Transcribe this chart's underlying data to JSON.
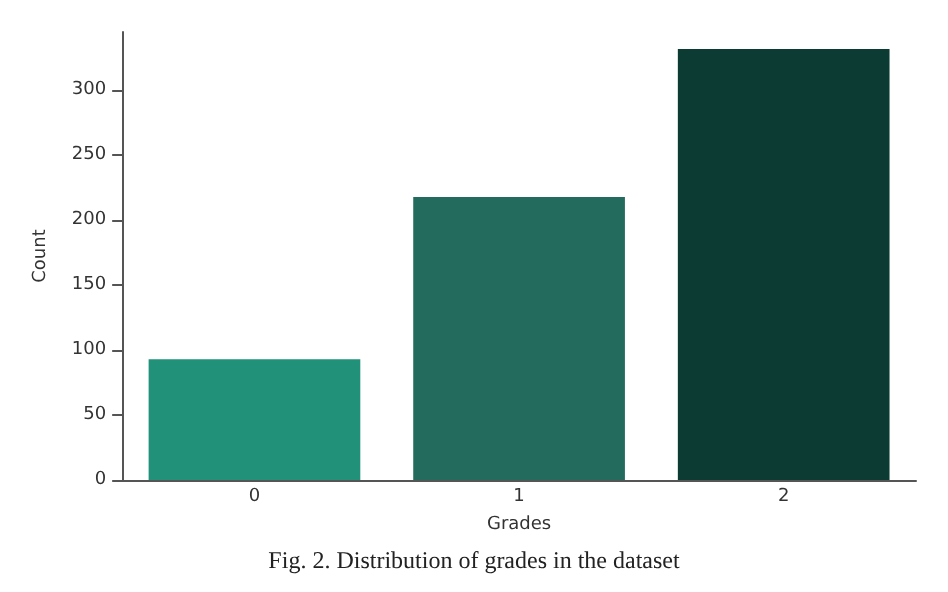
{
  "chart_data": {
    "type": "bar",
    "categories": [
      "0",
      "1",
      "2"
    ],
    "values": [
      93,
      218,
      332
    ],
    "colors": [
      "#22917a",
      "#236b5c",
      "#0c3b33"
    ],
    "xlabel": "Grades",
    "ylabel": "Count",
    "ylim": [
      0,
      345
    ],
    "yticks": [
      0,
      50,
      100,
      150,
      200,
      250,
      300
    ],
    "grid": false,
    "annotations": [
      "Fig. 2. Distribution of grades in the dataset"
    ]
  }
}
